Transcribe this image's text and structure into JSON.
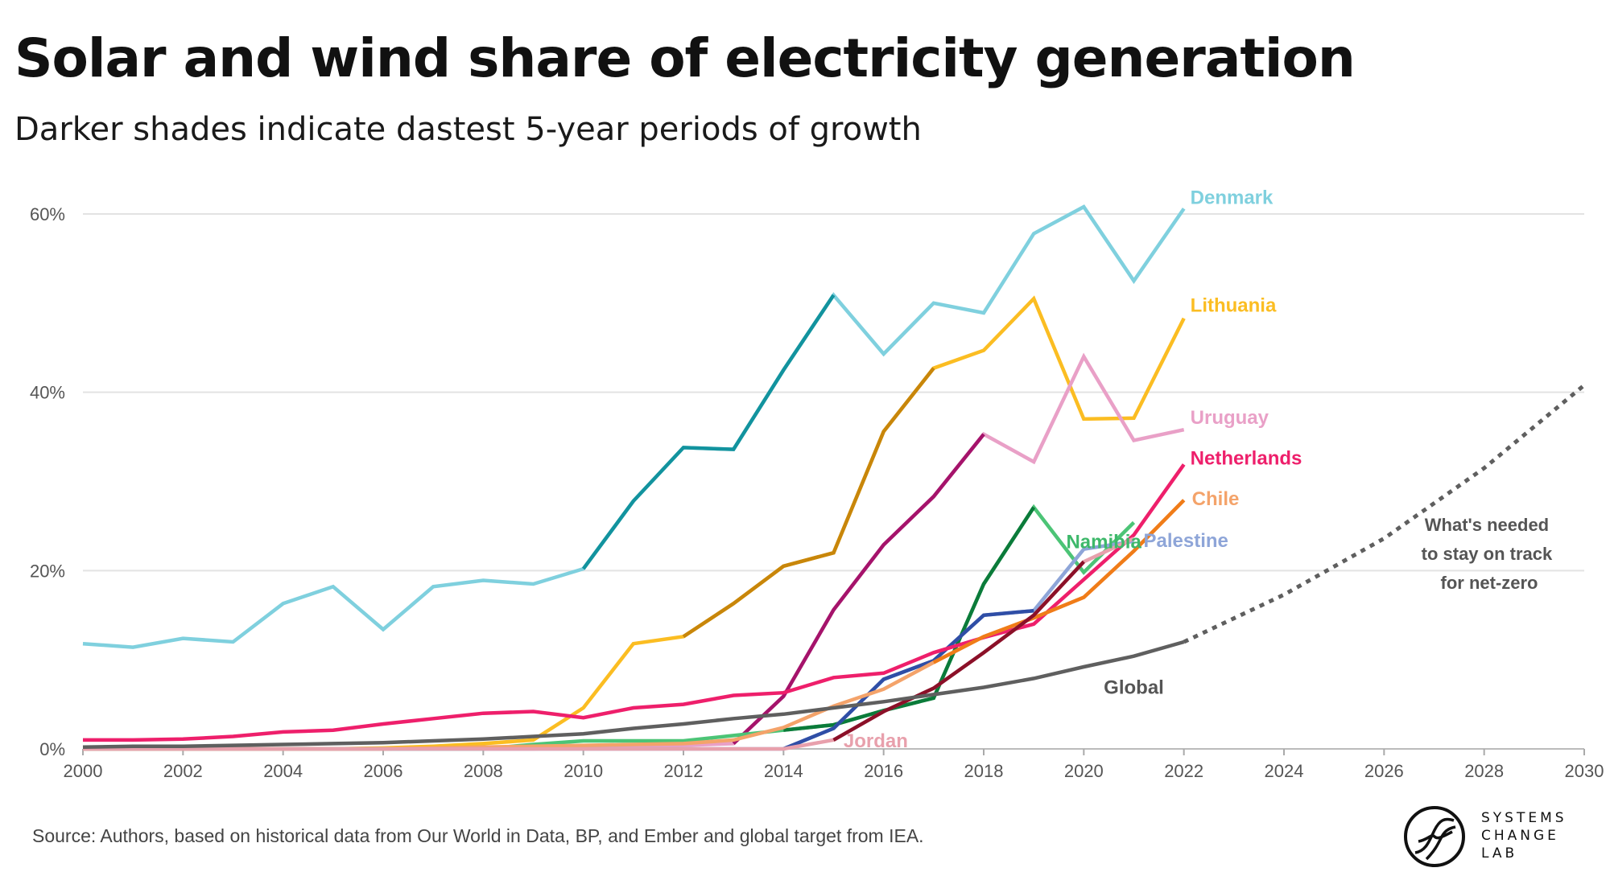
{
  "title": "Solar and wind share of electricity generation",
  "subtitle": "Darker shades indicate dastest 5-year periods of growth",
  "source": "Source: Authors, based on historical data from Our World in Data, BP, and Ember and global target from IEA.",
  "logo": {
    "line1": "SYSTEMS",
    "line2": "CHANGE",
    "line3": "LAB"
  },
  "chart_data": {
    "type": "line",
    "title": "",
    "xlabel": "",
    "ylabel": "",
    "xlim": [
      2000,
      2030
    ],
    "ylim": [
      0,
      60
    ],
    "x_ticks": [
      2000,
      2002,
      2004,
      2006,
      2008,
      2010,
      2012,
      2014,
      2016,
      2018,
      2020,
      2022,
      2024,
      2026,
      2028,
      2030
    ],
    "x_tick_labels": [
      "2000",
      "2002",
      "2004",
      "2006",
      "2008",
      "2010",
      "2012",
      "2014",
      "2016",
      "2018",
      "2020",
      "2022",
      "2024",
      "2026",
      "2028",
      "2030"
    ],
    "y_ticks": [
      0,
      20,
      40,
      60
    ],
    "y_tick_labels": [
      "0%",
      "20%",
      "40%",
      "60%"
    ],
    "grid": "horizontal",
    "annotation": [
      "What's needed",
      "to stay on track",
      "for net-zero"
    ],
    "series": [
      {
        "name": "Denmark",
        "color": "#7fd0de",
        "dark_color": "#12939e",
        "dark_range": [
          2010,
          2015
        ],
        "x": [
          2000,
          2001,
          2002,
          2003,
          2004,
          2005,
          2006,
          2007,
          2008,
          2009,
          2010,
          2011,
          2012,
          2013,
          2014,
          2015,
          2016,
          2017,
          2018,
          2019,
          2020,
          2021,
          2022
        ],
        "y": [
          11.8,
          11.4,
          12.4,
          12.0,
          16.3,
          18.2,
          13.4,
          18.2,
          18.9,
          18.5,
          20.2,
          27.8,
          33.8,
          33.6,
          42.5,
          50.9,
          44.3,
          50.0,
          48.9,
          57.8,
          60.8,
          52.5,
          60.6
        ]
      },
      {
        "name": "Lithuania",
        "color": "#fbbd22",
        "dark_color": "#c8860a",
        "dark_range": [
          2012,
          2017
        ],
        "x": [
          2000,
          2001,
          2002,
          2003,
          2004,
          2005,
          2006,
          2007,
          2008,
          2009,
          2010,
          2011,
          2012,
          2013,
          2014,
          2015,
          2016,
          2017,
          2018,
          2019,
          2020,
          2021,
          2022
        ],
        "y": [
          0,
          0,
          0,
          0,
          0,
          0,
          0.1,
          0.3,
          0.6,
          1.0,
          4.6,
          11.8,
          12.6,
          16.3,
          20.5,
          22.0,
          35.6,
          42.7,
          44.7,
          50.5,
          37.0,
          37.1,
          48.3
        ]
      },
      {
        "name": "Uruguay",
        "color": "#e9a0c7",
        "dark_color": "#a5136b",
        "dark_range": [
          2013,
          2018
        ],
        "x": [
          2000,
          2001,
          2002,
          2003,
          2004,
          2005,
          2006,
          2007,
          2008,
          2009,
          2010,
          2011,
          2012,
          2013,
          2014,
          2015,
          2016,
          2017,
          2018,
          2019,
          2020,
          2021,
          2022
        ],
        "y": [
          0,
          0,
          0,
          0,
          0,
          0,
          0,
          0,
          0,
          0,
          0.2,
          0.3,
          0.4,
          0.6,
          5.9,
          15.6,
          22.9,
          28.3,
          35.3,
          32.2,
          44.0,
          34.6,
          35.8
        ]
      },
      {
        "name": "Namibia",
        "color": "#4cc476",
        "dark_color": "#0b7b3a",
        "dark_range": [
          2014,
          2019
        ],
        "x": [
          2000,
          2001,
          2002,
          2003,
          2004,
          2005,
          2006,
          2007,
          2008,
          2009,
          2010,
          2011,
          2012,
          2013,
          2014,
          2015,
          2016,
          2017,
          2018,
          2019,
          2020,
          2021
        ],
        "y": [
          0,
          0,
          0,
          0,
          0,
          0,
          0,
          0,
          0,
          0.5,
          0.9,
          0.9,
          0.9,
          1.5,
          2.1,
          2.7,
          4.3,
          5.7,
          18.5,
          27.1,
          19.8,
          25.4
        ]
      },
      {
        "name": "Palestine",
        "color": "#8ea5d8",
        "dark_color": "#2f4ea6",
        "dark_range": [
          2014,
          2019
        ],
        "x": [
          2000,
          2001,
          2002,
          2003,
          2004,
          2005,
          2006,
          2007,
          2008,
          2009,
          2010,
          2011,
          2012,
          2013,
          2014,
          2015,
          2016,
          2017,
          2018,
          2019,
          2020,
          2021
        ],
        "y": [
          0,
          0,
          0,
          0,
          0,
          0,
          0,
          0,
          0,
          0,
          0,
          0,
          0,
          0,
          0,
          2.3,
          7.8,
          9.9,
          15.0,
          15.5,
          22.4,
          23.3
        ]
      },
      {
        "name": "Netherlands",
        "color": "#ee1f6b",
        "dark_color": "#ee1f6b",
        "dark_range": [],
        "x": [
          2000,
          2001,
          2002,
          2003,
          2004,
          2005,
          2006,
          2007,
          2008,
          2009,
          2010,
          2011,
          2012,
          2013,
          2014,
          2015,
          2016,
          2017,
          2018,
          2019,
          2020,
          2021,
          2022
        ],
        "y": [
          1.0,
          1.0,
          1.1,
          1.4,
          1.9,
          2.1,
          2.8,
          3.4,
          4.0,
          4.2,
          3.5,
          4.6,
          5.0,
          6.0,
          6.3,
          8.0,
          8.5,
          10.8,
          12.5,
          14.0,
          19.0,
          24.0,
          31.9
        ]
      },
      {
        "name": "Chile",
        "color": "#f4a36a",
        "dark_color": "#f07c18",
        "dark_range": [
          2017,
          2022
        ],
        "x": [
          2000,
          2001,
          2002,
          2003,
          2004,
          2005,
          2006,
          2007,
          2008,
          2009,
          2010,
          2011,
          2012,
          2013,
          2014,
          2015,
          2016,
          2017,
          2018,
          2019,
          2020,
          2021,
          2022
        ],
        "y": [
          0,
          0,
          0,
          0,
          0,
          0,
          0,
          0.1,
          0.2,
          0.3,
          0.4,
          0.5,
          0.6,
          1.0,
          2.4,
          4.8,
          6.7,
          9.7,
          12.6,
          14.7,
          17.0,
          22.2,
          27.9
        ]
      },
      {
        "name": "Jordan",
        "color": "#e8a0ac",
        "dark_color": "#8b1028",
        "dark_range": [
          2015,
          2020
        ],
        "x": [
          2000,
          2001,
          2002,
          2003,
          2004,
          2005,
          2006,
          2007,
          2008,
          2009,
          2010,
          2011,
          2012,
          2013,
          2014,
          2015,
          2016,
          2017,
          2018,
          2019,
          2020,
          2021
        ],
        "y": [
          0,
          0,
          0,
          0,
          0,
          0,
          0,
          0,
          0,
          0,
          0,
          0,
          0,
          0,
          0,
          1.0,
          4.2,
          6.8,
          10.8,
          15.0,
          21.0,
          23.6
        ]
      },
      {
        "name": "Global",
        "color": "#5f5f5f",
        "dark_color": "#5f5f5f",
        "dark_range": [],
        "x": [
          2000,
          2001,
          2002,
          2003,
          2004,
          2005,
          2006,
          2007,
          2008,
          2009,
          2010,
          2011,
          2012,
          2013,
          2014,
          2015,
          2016,
          2017,
          2018,
          2019,
          2020,
          2021,
          2022
        ],
        "y": [
          0.2,
          0.3,
          0.3,
          0.4,
          0.5,
          0.6,
          0.7,
          0.9,
          1.1,
          1.4,
          1.7,
          2.3,
          2.8,
          3.4,
          3.9,
          4.6,
          5.3,
          6.1,
          6.9,
          7.9,
          9.2,
          10.4,
          12.0
        ]
      },
      {
        "name": "What's needed to stay on track for net-zero",
        "color": "#5f5f5f",
        "dashed": true,
        "x": [
          2022,
          2024,
          2026,
          2028,
          2030
        ],
        "y": [
          12.0,
          17.3,
          23.6,
          31.5,
          40.8
        ]
      }
    ]
  }
}
